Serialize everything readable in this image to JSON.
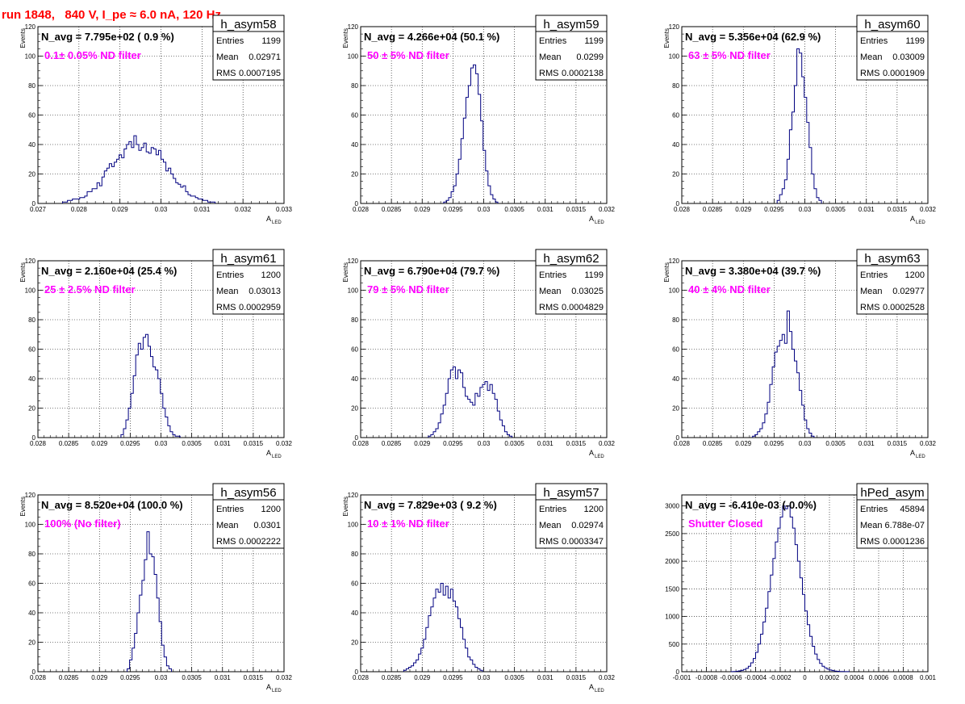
{
  "run_title": "run 1848,   840 V, I_pe ≈ 6.0 nA, 120 Hz",
  "colors": {
    "histogram": "#000080",
    "annotation": "#ff00ff",
    "title": "#ff0000",
    "grid": "#000000"
  },
  "chart_data": [
    {
      "type": "histogram",
      "name": "h_asym58",
      "navg": "N_avg = 7.795e+02 ( 0.9 %)",
      "filter": "0.1± 0.05% ND filter",
      "stats": {
        "entries": "1199",
        "mean": "0.02971",
        "rms": "0.0007195"
      },
      "xlabel": "A",
      "xlabel_sub": "LED",
      "ylabel": "Events",
      "xlim": [
        0.027,
        0.033
      ],
      "ylim": [
        0,
        120
      ],
      "xticks": [
        0.027,
        0.028,
        0.029,
        0.03,
        0.031,
        0.032,
        0.033
      ],
      "xtick_labels": [
        "0.027",
        "0.028",
        "0.029",
        "0.03",
        "0.031",
        "0.032",
        "0.033"
      ],
      "yticks": [
        0,
        20,
        40,
        60,
        80,
        100,
        120
      ],
      "ytick_labels": [
        "0",
        "20",
        "40",
        "60",
        "80",
        "100",
        "120"
      ],
      "bins": {
        "start": 0.0276,
        "width": 6e-05,
        "counts": [
          1,
          1,
          2,
          2,
          3,
          3,
          3,
          4,
          4,
          5,
          8,
          8,
          10,
          10,
          14,
          12,
          18,
          22,
          24,
          27,
          25,
          28,
          30,
          33,
          31,
          37,
          40,
          42,
          38,
          46,
          40,
          36,
          38,
          41,
          35,
          34,
          38,
          37,
          33,
          36,
          30,
          28,
          22,
          24,
          20,
          17,
          14,
          13,
          11,
          12,
          8,
          6,
          5,
          5,
          4,
          3,
          3,
          2,
          2,
          1,
          1,
          1
        ]
      }
    },
    {
      "type": "histogram",
      "name": "h_asym59",
      "navg": "N_avg = 4.266e+04 (50.1 %)",
      "filter": "50 ± 5% ND filter",
      "stats": {
        "entries": "1199",
        "mean": "0.0299",
        "rms": "0.0002138"
      },
      "xlabel": "A",
      "xlabel_sub": "LED",
      "ylabel": "Events",
      "xlim": [
        0.028,
        0.032
      ],
      "ylim": [
        0,
        120
      ],
      "xticks": [
        0.028,
        0.0285,
        0.029,
        0.0295,
        0.03,
        0.0305,
        0.031,
        0.0315,
        0.032
      ],
      "xtick_labels": [
        "0.028",
        "0.0285",
        "0.029",
        "0.0295",
        "0.03",
        "0.0305",
        "0.031",
        "0.0315",
        "0.032"
      ],
      "yticks": [
        0,
        20,
        40,
        60,
        80,
        100,
        120
      ],
      "ytick_labels": [
        "0",
        "20",
        "40",
        "60",
        "80",
        "100",
        "120"
      ],
      "bins": {
        "start": 0.02935,
        "width": 4e-05,
        "counts": [
          1,
          2,
          4,
          8,
          12,
          20,
          30,
          44,
          58,
          72,
          80,
          92,
          94,
          88,
          74,
          56,
          36,
          22,
          12,
          6,
          3,
          1
        ]
      }
    },
    {
      "type": "histogram",
      "name": "h_asym60",
      "navg": "N_avg = 5.356e+04 (62.9 %)",
      "filter": "63 ± 5% ND filter",
      "stats": {
        "entries": "1199",
        "mean": "0.03009",
        "rms": "0.0001909"
      },
      "xlabel": "A",
      "xlabel_sub": "LED",
      "ylabel": "Events",
      "xlim": [
        0.028,
        0.032
      ],
      "ylim": [
        0,
        120
      ],
      "xticks": [
        0.028,
        0.0285,
        0.029,
        0.0295,
        0.03,
        0.0305,
        0.031,
        0.0315,
        0.032
      ],
      "xtick_labels": [
        "0.028",
        "0.0285",
        "0.029",
        "0.0295",
        "0.03",
        "0.0305",
        "0.031",
        "0.0315",
        "0.032"
      ],
      "yticks": [
        0,
        20,
        40,
        60,
        80,
        100,
        120
      ],
      "ytick_labels": [
        "0",
        "20",
        "40",
        "60",
        "80",
        "100",
        "120"
      ],
      "bins": {
        "start": 0.02955,
        "width": 4e-05,
        "counts": [
          2,
          6,
          10,
          16,
          30,
          50,
          62,
          80,
          105,
          102,
          86,
          72,
          55,
          38,
          20,
          10,
          4,
          2
        ]
      }
    },
    {
      "type": "histogram",
      "name": "h_asym61",
      "navg": "N_avg = 2.160e+04 (25.4 %)",
      "filter": "25 ± 2.5% ND filter",
      "stats": {
        "entries": "1200",
        "mean": "0.03013",
        "rms": "0.0002959"
      },
      "xlabel": "A",
      "xlabel_sub": "LED",
      "ylabel": "Events",
      "xlim": [
        0.028,
        0.032
      ],
      "ylim": [
        0,
        120
      ],
      "xticks": [
        0.028,
        0.0285,
        0.029,
        0.0295,
        0.03,
        0.0305,
        0.031,
        0.0315,
        0.032
      ],
      "xtick_labels": [
        "0.028",
        "0.0285",
        "0.029",
        "0.0295",
        "0.03",
        "0.0305",
        "0.031",
        "0.0315",
        "0.032"
      ],
      "yticks": [
        0,
        20,
        40,
        60,
        80,
        100,
        120
      ],
      "ytick_labels": [
        "0",
        "20",
        "40",
        "60",
        "80",
        "100",
        "120"
      ],
      "bins": {
        "start": 0.02935,
        "width": 4e-05,
        "counts": [
          2,
          6,
          12,
          20,
          30,
          42,
          56,
          64,
          60,
          68,
          70,
          62,
          55,
          48,
          46,
          40,
          30,
          20,
          14,
          8,
          4,
          2,
          1,
          1
        ]
      }
    },
    {
      "type": "histogram",
      "name": "h_asym62",
      "navg": "N_avg = 6.790e+04 (79.7 %)",
      "filter": "79 ± 5% ND filter",
      "stats": {
        "entries": "1199",
        "mean": "0.03025",
        "rms": "0.0004829"
      },
      "xlabel": "A",
      "xlabel_sub": "LED",
      "ylabel": "Events",
      "xlim": [
        0.028,
        0.032
      ],
      "ylim": [
        0,
        120
      ],
      "xticks": [
        0.028,
        0.0285,
        0.029,
        0.0295,
        0.03,
        0.0305,
        0.031,
        0.0315,
        0.032
      ],
      "xtick_labels": [
        "0.028",
        "0.0285",
        "0.029",
        "0.0295",
        "0.03",
        "0.0305",
        "0.031",
        "0.0315",
        "0.032"
      ],
      "yticks": [
        0,
        20,
        40,
        60,
        80,
        100,
        120
      ],
      "ytick_labels": [
        "0",
        "20",
        "40",
        "60",
        "80",
        "100",
        "120"
      ],
      "bins": {
        "start": 0.0291,
        "width": 4e-05,
        "counts": [
          1,
          2,
          4,
          6,
          10,
          16,
          22,
          30,
          40,
          46,
          48,
          40,
          46,
          44,
          34,
          28,
          26,
          24,
          22,
          30,
          28,
          34,
          36,
          38,
          32,
          36,
          30,
          26,
          18,
          12,
          8,
          4,
          2,
          1
        ]
      }
    },
    {
      "type": "histogram",
      "name": "h_asym63",
      "navg": "N_avg = 3.380e+04 (39.7 %)",
      "filter": "40 ± 4% ND filter",
      "stats": {
        "entries": "1200",
        "mean": "0.02977",
        "rms": "0.0002528"
      },
      "xlabel": "A",
      "xlabel_sub": "LED",
      "ylabel": "Events",
      "xlim": [
        0.028,
        0.032
      ],
      "ylim": [
        0,
        120
      ],
      "xticks": [
        0.028,
        0.0285,
        0.029,
        0.0295,
        0.03,
        0.0305,
        0.031,
        0.0315,
        0.032
      ],
      "xtick_labels": [
        "0.028",
        "0.0285",
        "0.029",
        "0.0295",
        "0.03",
        "0.0305",
        "0.031",
        "0.0315",
        "0.032"
      ],
      "yticks": [
        0,
        20,
        40,
        60,
        80,
        100,
        120
      ],
      "ytick_labels": [
        "0",
        "20",
        "40",
        "60",
        "80",
        "100",
        "120"
      ],
      "bins": {
        "start": 0.02915,
        "width": 4e-05,
        "counts": [
          1,
          2,
          4,
          6,
          10,
          16,
          24,
          36,
          48,
          58,
          62,
          66,
          70,
          64,
          86,
          72,
          60,
          52,
          44,
          32,
          22,
          12,
          6,
          3,
          1
        ]
      }
    },
    {
      "type": "histogram",
      "name": "h_asym56",
      "navg": "N_avg = 8.520e+04 (100.0 %)",
      "filter": "100% (No filter)",
      "stats": {
        "entries": "1200",
        "mean": "0.0301",
        "rms": "0.0002222"
      },
      "xlabel": "A",
      "xlabel_sub": "LED",
      "ylabel": "Events",
      "xlim": [
        0.028,
        0.032
      ],
      "ylim": [
        0,
        120
      ],
      "xticks": [
        0.028,
        0.0285,
        0.029,
        0.0295,
        0.03,
        0.0305,
        0.031,
        0.0315,
        0.032
      ],
      "xtick_labels": [
        "0.028",
        "0.0285",
        "0.029",
        "0.0295",
        "0.03",
        "0.0305",
        "0.031",
        "0.0315",
        "0.032"
      ],
      "yticks": [
        0,
        20,
        40,
        60,
        80,
        100,
        120
      ],
      "ytick_labels": [
        "0",
        "20",
        "40",
        "60",
        "80",
        "100",
        "120"
      ],
      "bins": {
        "start": 0.02945,
        "width": 4e-05,
        "counts": [
          2,
          8,
          16,
          26,
          40,
          52,
          62,
          76,
          95,
          80,
          78,
          66,
          50,
          34,
          18,
          10,
          4,
          2
        ]
      }
    },
    {
      "type": "histogram",
      "name": "h_asym57",
      "navg": "N_avg = 7.829e+03 ( 9.2 %)",
      "filter": "10 ± 1% ND filter",
      "stats": {
        "entries": "1200",
        "mean": "0.02974",
        "rms": "0.0003347"
      },
      "xlabel": "A",
      "xlabel_sub": "LED",
      "ylabel": "Events",
      "xlim": [
        0.028,
        0.032
      ],
      "ylim": [
        0,
        120
      ],
      "xticks": [
        0.028,
        0.0285,
        0.029,
        0.0295,
        0.03,
        0.0305,
        0.031,
        0.0315,
        0.032
      ],
      "xtick_labels": [
        "0.028",
        "0.0285",
        "0.029",
        "0.0295",
        "0.03",
        "0.0305",
        "0.031",
        "0.0315",
        "0.032"
      ],
      "yticks": [
        0,
        20,
        40,
        60,
        80,
        100,
        120
      ],
      "ytick_labels": [
        "0",
        "20",
        "40",
        "60",
        "80",
        "100",
        "120"
      ],
      "bins": {
        "start": 0.0287,
        "width": 4e-05,
        "counts": [
          1,
          2,
          3,
          4,
          6,
          8,
          12,
          16,
          22,
          30,
          38,
          44,
          50,
          56,
          54,
          60,
          52,
          58,
          50,
          56,
          48,
          44,
          36,
          30,
          22,
          16,
          10,
          8,
          5,
          3,
          2,
          1
        ]
      }
    },
    {
      "type": "histogram",
      "name": "hPed_asym",
      "navg": "N_avg = -6.410e-03 (-0.0%)",
      "filter": "Shutter Closed",
      "stats": {
        "entries": "45894",
        "mean": "6.788e-07",
        "rms": "0.0001236"
      },
      "xlabel": "",
      "xlabel_sub": "",
      "ylabel": "",
      "xlim": [
        -0.001,
        0.001
      ],
      "ylim": [
        0,
        3200
      ],
      "xticks": [
        -0.001,
        -0.0008,
        -0.0006,
        -0.0004,
        -0.0002,
        0,
        0.0002,
        0.0004,
        0.0006,
        0.0008,
        0.001
      ],
      "xtick_labels": [
        "-0.001",
        "-0.0008",
        "-0.0006",
        "-0.0004",
        "-0.0002",
        "0",
        "0.0002",
        "0.0004",
        "0.0006",
        "0.0008",
        "0.001"
      ],
      "yticks": [
        0,
        500,
        1000,
        1500,
        2000,
        2500,
        3000
      ],
      "ytick_labels": [
        "0",
        "500",
        "1000",
        "1500",
        "2000",
        "2500",
        "3000"
      ],
      "bins": {
        "start": -0.0006,
        "width": 2e-05,
        "counts": [
          2,
          4,
          8,
          14,
          24,
          40,
          60,
          100,
          160,
          240,
          350,
          500,
          680,
          900,
          1150,
          1450,
          1750,
          2050,
          2350,
          2600,
          2800,
          3000,
          2950,
          3000,
          2800,
          2600,
          2300,
          2000,
          1700,
          1400,
          1100,
          850,
          640,
          460,
          320,
          220,
          150,
          100,
          70,
          45,
          30,
          20,
          12,
          8,
          5,
          3,
          2,
          1
        ]
      }
    }
  ]
}
